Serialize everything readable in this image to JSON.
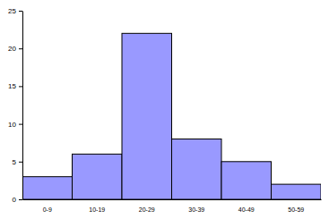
{
  "chart_data": {
    "type": "bar",
    "categories": [
      "0-9",
      "10-19",
      "20-29",
      "30-39",
      "40-49",
      "50-59"
    ],
    "values": [
      3,
      6,
      22,
      8,
      5,
      2
    ],
    "color": "#9999ff",
    "ylim": [
      0,
      25
    ],
    "yticks": [
      0,
      5,
      10,
      15,
      20,
      25
    ],
    "grid": false
  }
}
